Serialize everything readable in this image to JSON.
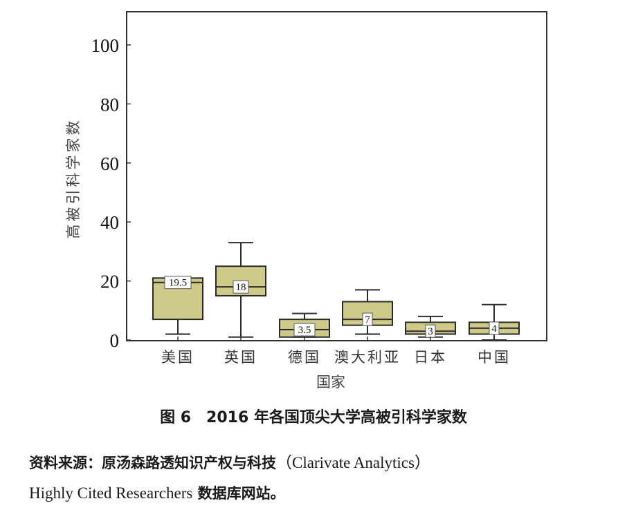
{
  "chart_data": {
    "type": "box",
    "title": "图 6　2016 年各国顶尖大学高被引科学家数",
    "xlabel": "国家",
    "ylabel": "高被引科学家数",
    "ylim": [
      0,
      110
    ],
    "yticks": [
      0,
      20,
      40,
      60,
      80,
      100
    ],
    "grid": false,
    "categories": [
      "美国",
      "英国",
      "德国",
      "澳大利亚",
      "日本",
      "中国"
    ],
    "series": [
      {
        "name": "美国",
        "whisker_low": 2,
        "q1": 7,
        "median": 19.5,
        "q3": 21,
        "whisker_high": 21,
        "median_label": "19.5"
      },
      {
        "name": "英国",
        "whisker_low": 1,
        "q1": 15,
        "median": 18,
        "q3": 25,
        "whisker_high": 33,
        "median_label": "18"
      },
      {
        "name": "德国",
        "whisker_low": 1,
        "q1": 1,
        "median": 3.5,
        "q3": 7,
        "whisker_high": 9,
        "median_label": "3.5"
      },
      {
        "name": "澳大利亚",
        "whisker_low": 2,
        "q1": 5,
        "median": 7,
        "q3": 13,
        "whisker_high": 17,
        "median_label": "7"
      },
      {
        "name": "日本",
        "whisker_low": 1,
        "q1": 2,
        "median": 3,
        "q3": 6,
        "whisker_high": 8,
        "median_label": "3"
      },
      {
        "name": "中国",
        "whisker_low": 0,
        "q1": 2,
        "median": 4,
        "q3": 6,
        "whisker_high": 12,
        "median_label": "4"
      }
    ],
    "box_color": "#cfc98a",
    "line_color": "#2b2b2b"
  },
  "figure": {
    "caption": "图 6　2016 年各国顶尖大学高被引科学家数",
    "source_cn_1": "资料来源：原汤森路透知识产权与科技",
    "source_en_1": "（Clarivate Analytics）",
    "source_en_2": "Highly Cited Researchers",
    "source_cn_2": " 数据库网站。"
  }
}
